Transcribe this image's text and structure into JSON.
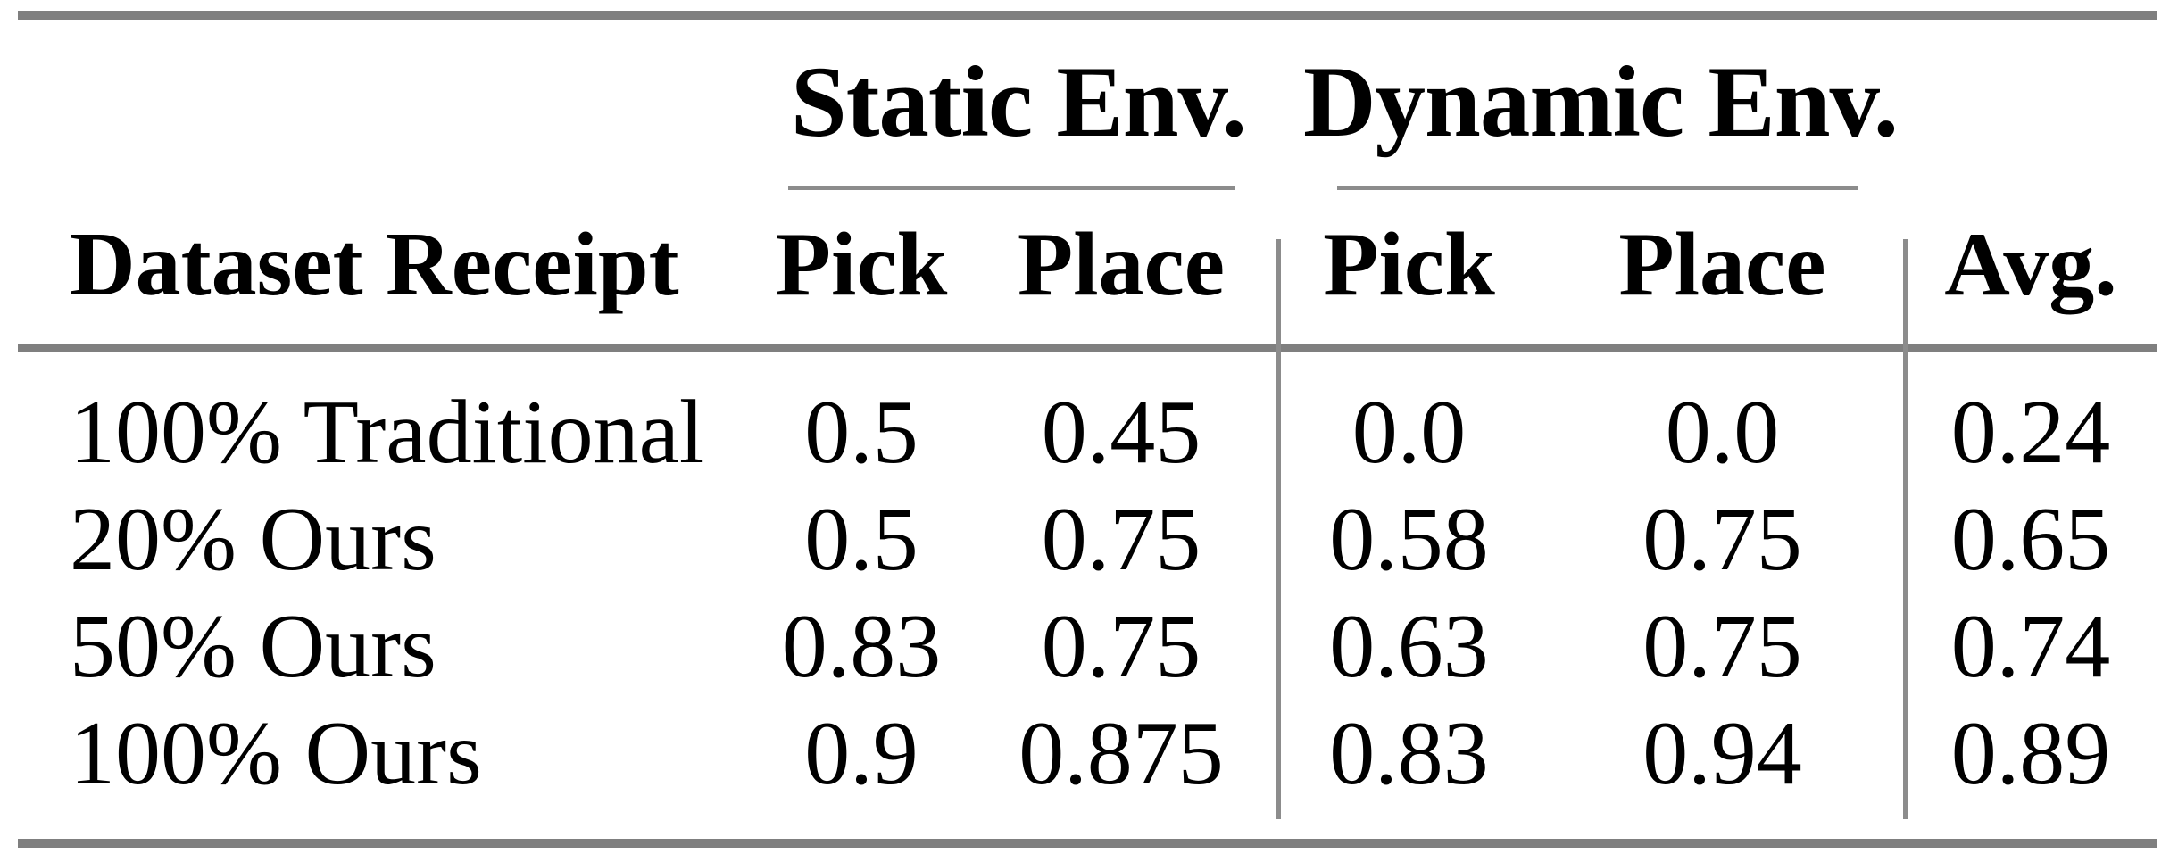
{
  "table": {
    "title_row": {
      "static_group": "Static Env.",
      "dynamic_group": "Dynamic Env."
    },
    "columns": {
      "dataset": "Dataset Receipt",
      "static_pick": "Pick",
      "static_place": "Place",
      "dynamic_pick": "Pick",
      "dynamic_place": "Place",
      "avg": "Avg."
    },
    "rows": [
      {
        "dataset": "100% Traditional",
        "static_pick": "0.5",
        "static_place": "0.45",
        "dynamic_pick": "0.0",
        "dynamic_place": "0.0",
        "avg": "0.24"
      },
      {
        "dataset": "20% Ours",
        "static_pick": "0.5",
        "static_place": "0.75",
        "dynamic_pick": "0.58",
        "dynamic_place": "0.75",
        "avg": "0.65"
      },
      {
        "dataset": "50% Ours",
        "static_pick": "0.83",
        "static_place": "0.75",
        "dynamic_pick": "0.63",
        "dynamic_place": "0.75",
        "avg": "0.74"
      },
      {
        "dataset": "100% Ours",
        "static_pick": "0.9",
        "static_place": "0.875",
        "dynamic_pick": "0.83",
        "dynamic_place": "0.94",
        "avg": "0.89"
      }
    ]
  },
  "colors": {
    "text": "#000000",
    "thick_rule": "#7f7f7f",
    "thin_rule": "#8c8c8c",
    "background": "#ffffff"
  },
  "chart_data": {
    "type": "table",
    "title": "",
    "column_groups": [
      "Static Env.",
      "Dynamic Env."
    ],
    "columns": [
      "Dataset Receipt",
      "Static Pick",
      "Static Place",
      "Dynamic Pick",
      "Dynamic Place",
      "Avg."
    ],
    "rows": [
      [
        "100% Traditional",
        0.5,
        0.45,
        0.0,
        0.0,
        0.24
      ],
      [
        "20% Ours",
        0.5,
        0.75,
        0.58,
        0.75,
        0.65
      ],
      [
        "50% Ours",
        0.83,
        0.75,
        0.63,
        0.75,
        0.74
      ],
      [
        "100% Ours",
        0.9,
        0.875,
        0.83,
        0.94,
        0.89
      ]
    ]
  }
}
